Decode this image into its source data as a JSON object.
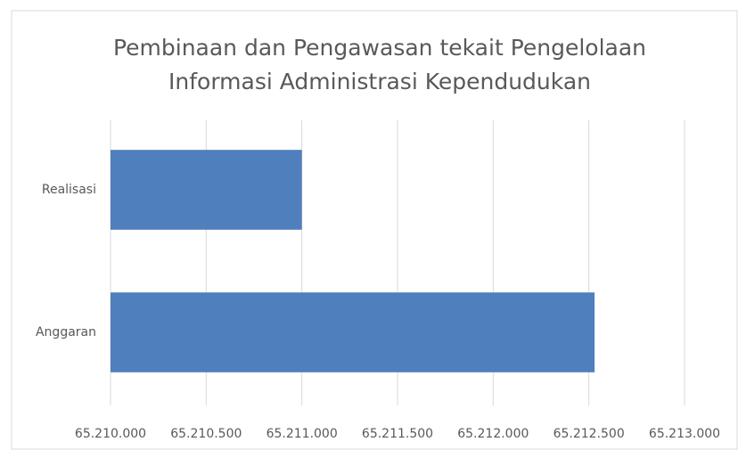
{
  "chart_data": {
    "type": "bar",
    "orientation": "horizontal",
    "title": [
      "Pembinaan dan Pengawasan tekait Pengelolaan",
      "Informasi Administrasi Kependudukan"
    ],
    "categories": [
      "Realisasi",
      "Anggaran"
    ],
    "values": [
      65211000,
      65212530
    ],
    "color": "#4f7fbd",
    "xlim": [
      65210000,
      65213000
    ],
    "xticks": [
      {
        "value": 65210000,
        "label": "65.210.000"
      },
      {
        "value": 65210500,
        "label": "65.210.500"
      },
      {
        "value": 65211000,
        "label": "65.211.000"
      },
      {
        "value": 65211500,
        "label": "65.211.500"
      },
      {
        "value": 65212000,
        "label": "65.212.000"
      },
      {
        "value": 65212500,
        "label": "65.212.500"
      },
      {
        "value": 65213000,
        "label": "65.213.000"
      }
    ],
    "grid": true
  }
}
